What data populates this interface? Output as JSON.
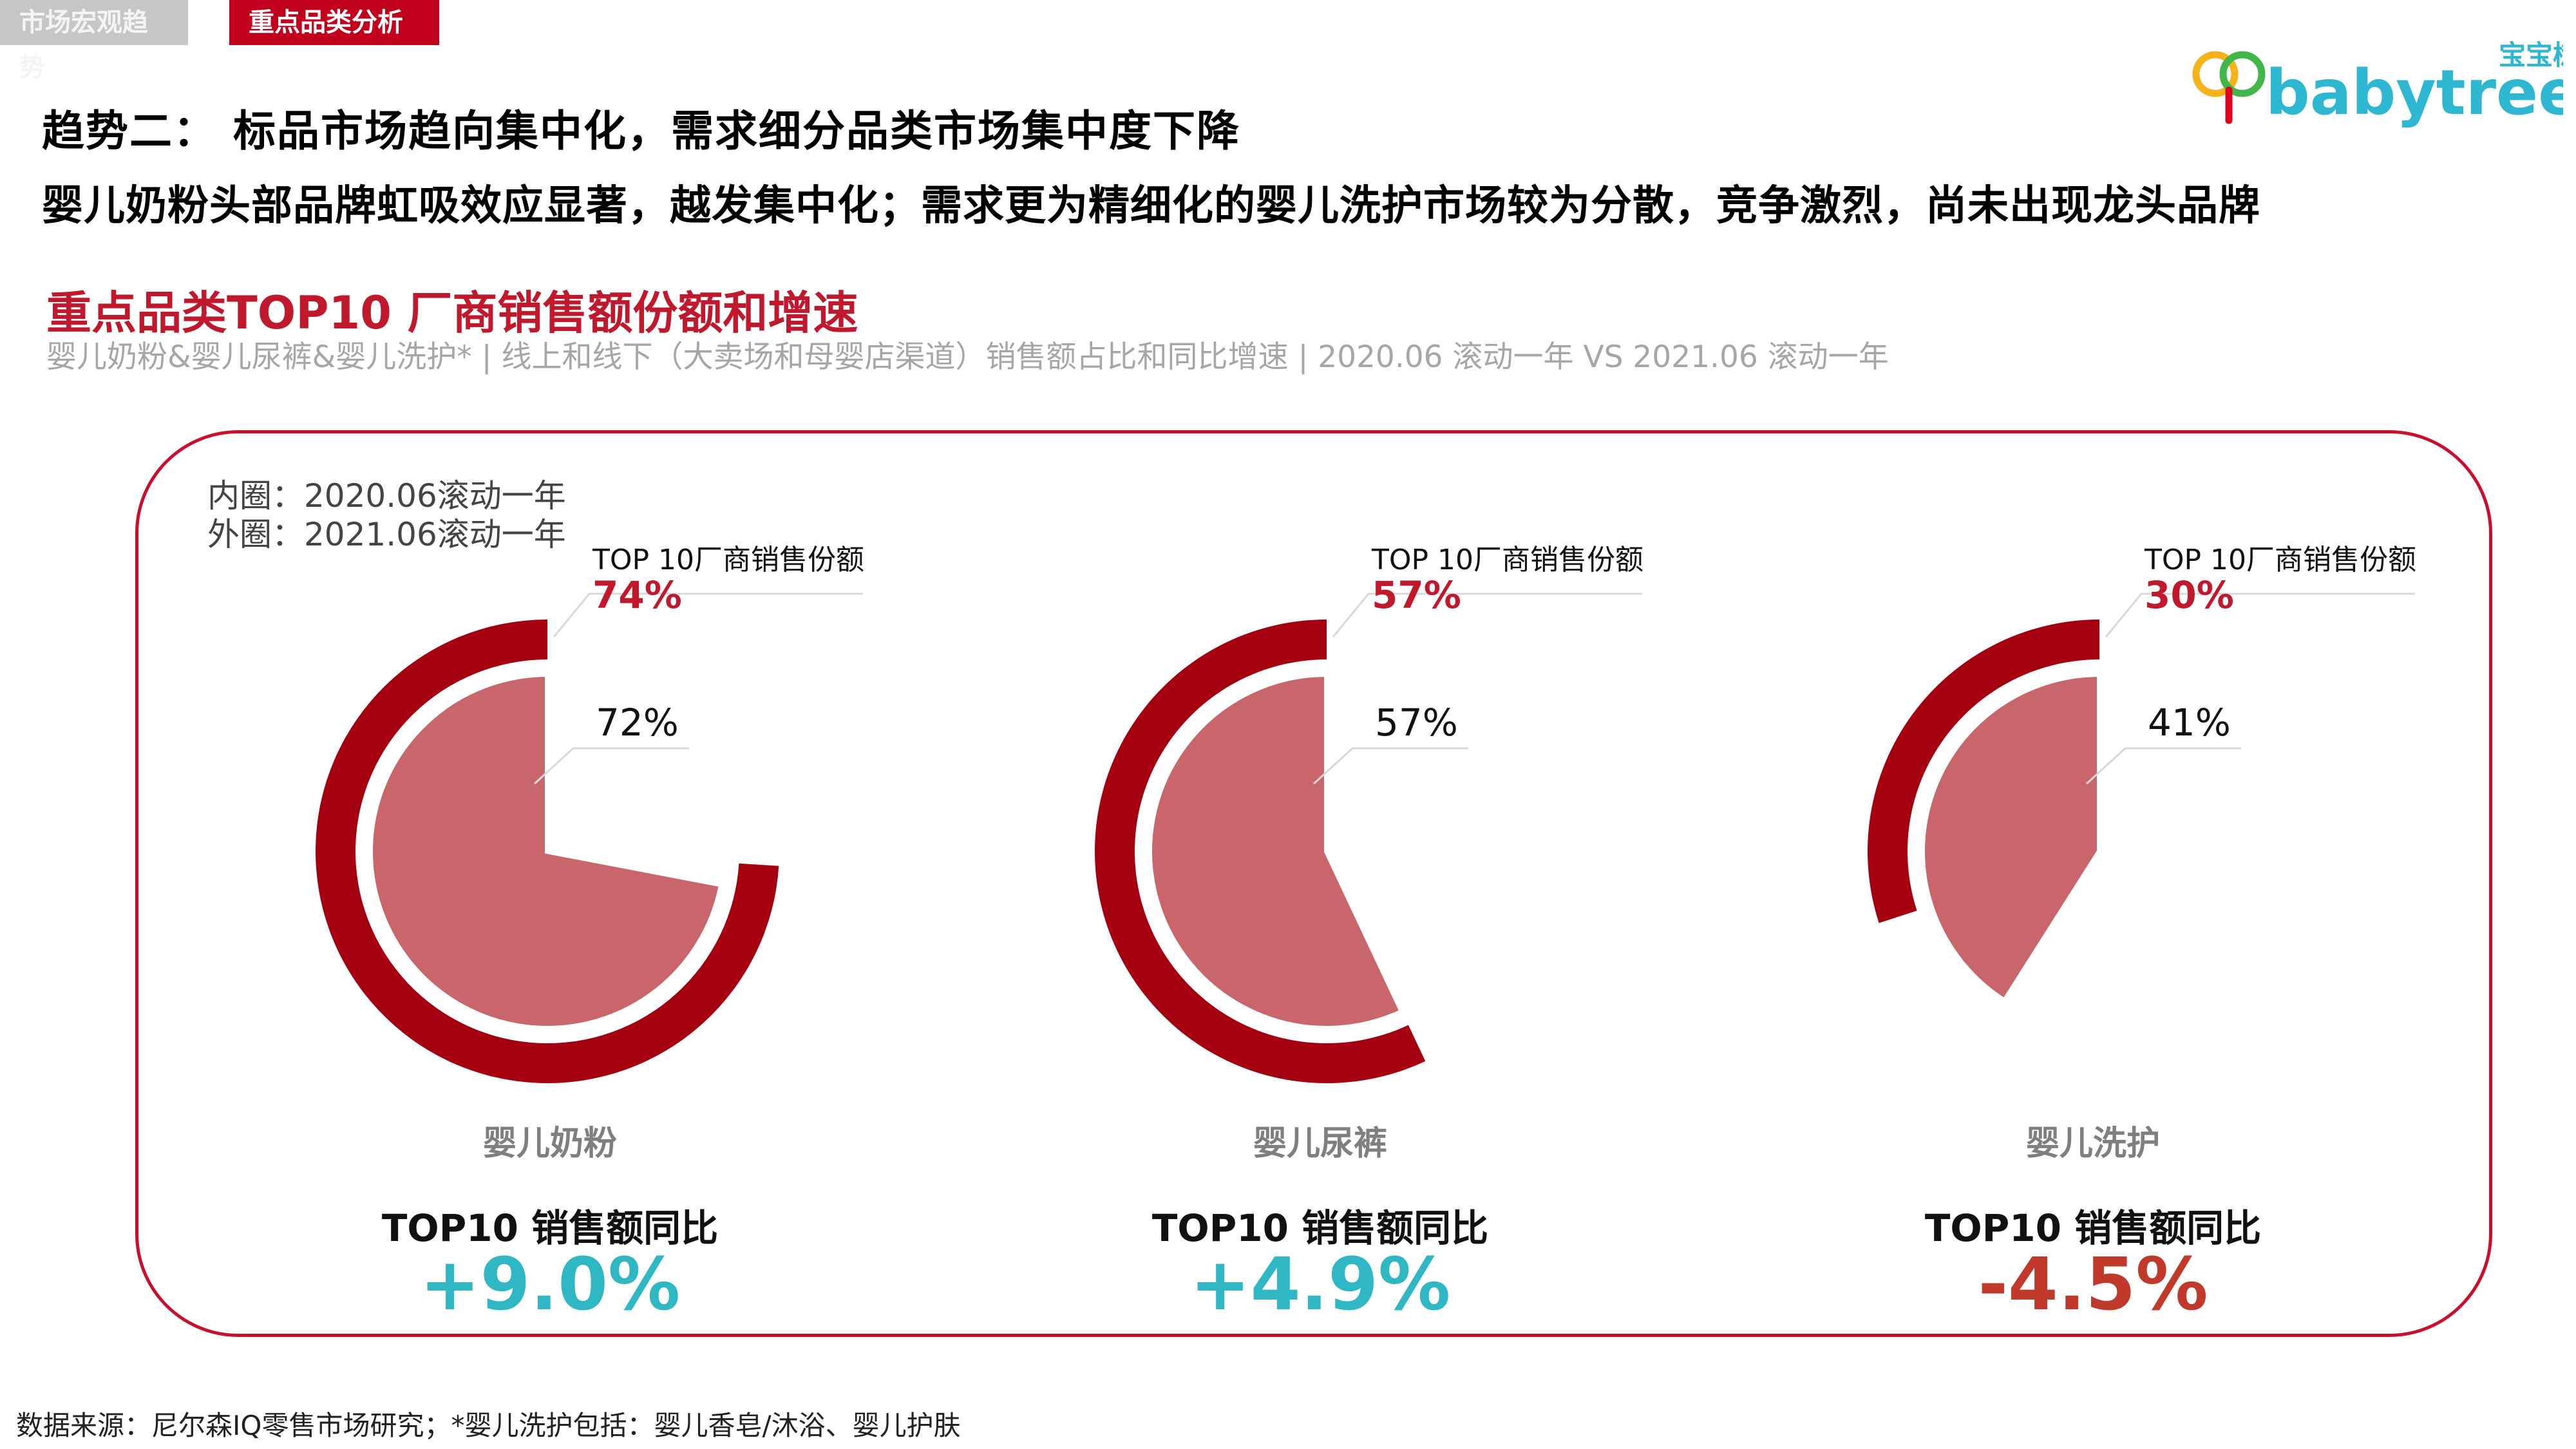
{
  "tabs": [
    {
      "label": "市场宏观趋势",
      "active": false
    },
    {
      "label": "重点品类分析",
      "active": true
    }
  ],
  "logo": {
    "cn": "宝宝树",
    "en": "babytree"
  },
  "headline": "趋势二： 标品市场趋向集中化，需求细分品类市场集中度下降",
  "subheadline": "婴儿奶粉头部品牌虹吸效应显著，越发集中化；需求更为精细化的婴儿洗护市场较为分散，竞争激烈，尚未出现龙头品牌",
  "section": {
    "title": "重点品类TOP10 厂商销售额份额和增速",
    "subtitle": "婴儿奶粉&婴儿尿裤&婴儿洗护* | 线上和线下（大卖场和母婴店渠道）销售额占比和同比增速 | 2020.06 滚动一年 VS 2021.06 滚动一年"
  },
  "legend": {
    "inner": "内圈：2020.06滚动一年",
    "outer": "外圈：2021.06滚动一年"
  },
  "colors": {
    "outer_ring": "#a4000f",
    "inner_pie": "#c9666c",
    "positive": "#2fb8c4",
    "negative": "#c0392b",
    "accent": "#c0182d"
  },
  "chart_data": {
    "type": "pie",
    "title": "重点品类TOP10 厂商销售额份额和增速",
    "series_names": [
      "2020.06滚动一年",
      "2021.06滚动一年"
    ],
    "callout_title": "TOP 10厂商销售份额",
    "yoy_title": "TOP10 销售额同比",
    "categories": [
      {
        "name": "婴儿奶粉",
        "inner_share": 72,
        "outer_share": 74,
        "inner_label": "72%",
        "outer_label": "74%",
        "yoy": 9.0,
        "yoy_label": "+9.0%"
      },
      {
        "name": "婴儿尿裤",
        "inner_share": 57,
        "outer_share": 57,
        "inner_label": "57%",
        "outer_label": "57%",
        "yoy": 4.9,
        "yoy_label": "+4.9%"
      },
      {
        "name": "婴儿洗护",
        "inner_share": 41,
        "outer_share": 30,
        "inner_label": "41%",
        "outer_label": "30%",
        "yoy": -4.5,
        "yoy_label": "-4.5%"
      }
    ]
  },
  "footer": "数据来源：尼尔森IQ零售市场研究；*婴儿洗护包括：婴儿香皂/沐浴、婴儿护肤"
}
